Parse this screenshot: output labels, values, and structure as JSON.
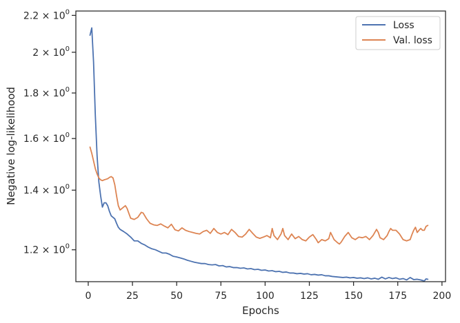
{
  "chart_data": {
    "type": "line",
    "xlabel": "Epochs",
    "ylabel": "Negative log-likelihood",
    "yscale": "log",
    "xlim": [
      -7,
      202
    ],
    "ylim": [
      1.105,
      2.225
    ],
    "grid": false,
    "legend_position": "top-right",
    "x_ticks": [
      0,
      25,
      50,
      75,
      100,
      125,
      150,
      175,
      200
    ],
    "x_tick_labels": [
      "0",
      "25",
      "50",
      "75",
      "100",
      "125",
      "150",
      "175",
      "200"
    ],
    "y_ticks": [
      1.2,
      1.4,
      1.6,
      1.8,
      2.0,
      2.2
    ],
    "y_tick_labels": [
      {
        "mantissa": "1.2",
        "exponent": "0"
      },
      {
        "mantissa": "1.4",
        "exponent": "0"
      },
      {
        "mantissa": "1.6",
        "exponent": "0"
      },
      {
        "mantissa": "1.8",
        "exponent": "0"
      },
      {
        "mantissa": "2",
        "exponent": "0"
      },
      {
        "mantissa": "2.2",
        "exponent": "0"
      }
    ],
    "times_sign": "×",
    "tick_base": "10",
    "series": [
      {
        "name": "Loss",
        "color": "#4c72b0",
        "points": [
          [
            1,
            2.09
          ],
          [
            2,
            2.13
          ],
          [
            3,
            1.95
          ],
          [
            4,
            1.7
          ],
          [
            5,
            1.53
          ],
          [
            6,
            1.43
          ],
          [
            7,
            1.38
          ],
          [
            8,
            1.34
          ],
          [
            9,
            1.355
          ],
          [
            10,
            1.355
          ],
          [
            11,
            1.345
          ],
          [
            12,
            1.325
          ],
          [
            13,
            1.31
          ],
          [
            14,
            1.305
          ],
          [
            15,
            1.3
          ],
          [
            16,
            1.285
          ],
          [
            17,
            1.272
          ],
          [
            18,
            1.265
          ],
          [
            20,
            1.258
          ],
          [
            22,
            1.25
          ],
          [
            24,
            1.24
          ],
          [
            26,
            1.228
          ],
          [
            28,
            1.228
          ],
          [
            30,
            1.22
          ],
          [
            32,
            1.215
          ],
          [
            34,
            1.208
          ],
          [
            36,
            1.203
          ],
          [
            38,
            1.2
          ],
          [
            40,
            1.195
          ],
          [
            42,
            1.19
          ],
          [
            44,
            1.19
          ],
          [
            46,
            1.186
          ],
          [
            48,
            1.18
          ],
          [
            50,
            1.178
          ],
          [
            52,
            1.175
          ],
          [
            54,
            1.172
          ],
          [
            56,
            1.168
          ],
          [
            58,
            1.165
          ],
          [
            60,
            1.162
          ],
          [
            62,
            1.16
          ],
          [
            64,
            1.158
          ],
          [
            66,
            1.158
          ],
          [
            68,
            1.155
          ],
          [
            70,
            1.154
          ],
          [
            72,
            1.155
          ],
          [
            74,
            1.151
          ],
          [
            76,
            1.152
          ],
          [
            78,
            1.148
          ],
          [
            80,
            1.149
          ],
          [
            82,
            1.146
          ],
          [
            84,
            1.146
          ],
          [
            86,
            1.144
          ],
          [
            88,
            1.145
          ],
          [
            90,
            1.142
          ],
          [
            92,
            1.143
          ],
          [
            94,
            1.14
          ],
          [
            96,
            1.141
          ],
          [
            98,
            1.138
          ],
          [
            100,
            1.139
          ],
          [
            102,
            1.136
          ],
          [
            104,
            1.137
          ],
          [
            106,
            1.134
          ],
          [
            108,
            1.135
          ],
          [
            110,
            1.132
          ],
          [
            112,
            1.133
          ],
          [
            114,
            1.13
          ],
          [
            116,
            1.13
          ],
          [
            118,
            1.128
          ],
          [
            120,
            1.129
          ],
          [
            122,
            1.127
          ],
          [
            124,
            1.128
          ],
          [
            126,
            1.125
          ],
          [
            128,
            1.126
          ],
          [
            130,
            1.124
          ],
          [
            132,
            1.125
          ],
          [
            134,
            1.122
          ],
          [
            136,
            1.122
          ],
          [
            138,
            1.12
          ],
          [
            140,
            1.119
          ],
          [
            142,
            1.118
          ],
          [
            144,
            1.117
          ],
          [
            146,
            1.118
          ],
          [
            148,
            1.116
          ],
          [
            150,
            1.117
          ],
          [
            152,
            1.115
          ],
          [
            154,
            1.116
          ],
          [
            156,
            1.114
          ],
          [
            158,
            1.116
          ],
          [
            160,
            1.113
          ],
          [
            162,
            1.115
          ],
          [
            164,
            1.112
          ],
          [
            166,
            1.118
          ],
          [
            168,
            1.113
          ],
          [
            170,
            1.117
          ],
          [
            172,
            1.114
          ],
          [
            174,
            1.116
          ],
          [
            176,
            1.112
          ],
          [
            178,
            1.114
          ],
          [
            180,
            1.11
          ],
          [
            182,
            1.117
          ],
          [
            184,
            1.111
          ],
          [
            186,
            1.112
          ],
          [
            188,
            1.11
          ],
          [
            190,
            1.107
          ],
          [
            191,
            1.113
          ],
          [
            192,
            1.112
          ]
        ]
      },
      {
        "name": "Val. loss",
        "color": "#dd8452",
        "points": [
          [
            1,
            1.565
          ],
          [
            2,
            1.54
          ],
          [
            3,
            1.51
          ],
          [
            4,
            1.48
          ],
          [
            5,
            1.46
          ],
          [
            6,
            1.445
          ],
          [
            7,
            1.438
          ],
          [
            8,
            1.435
          ],
          [
            9,
            1.438
          ],
          [
            10,
            1.44
          ],
          [
            11,
            1.442
          ],
          [
            12,
            1.447
          ],
          [
            13,
            1.45
          ],
          [
            14,
            1.445
          ],
          [
            15,
            1.42
          ],
          [
            16,
            1.38
          ],
          [
            17,
            1.345
          ],
          [
            18,
            1.33
          ],
          [
            19,
            1.335
          ],
          [
            20,
            1.34
          ],
          [
            21,
            1.345
          ],
          [
            22,
            1.335
          ],
          [
            23,
            1.318
          ],
          [
            24,
            1.302
          ],
          [
            26,
            1.298
          ],
          [
            28,
            1.305
          ],
          [
            30,
            1.322
          ],
          [
            31,
            1.32
          ],
          [
            33,
            1.3
          ],
          [
            35,
            1.285
          ],
          [
            37,
            1.28
          ],
          [
            39,
            1.278
          ],
          [
            41,
            1.283
          ],
          [
            43,
            1.276
          ],
          [
            45,
            1.27
          ],
          [
            47,
            1.282
          ],
          [
            49,
            1.264
          ],
          [
            51,
            1.26
          ],
          [
            53,
            1.27
          ],
          [
            55,
            1.262
          ],
          [
            57,
            1.258
          ],
          [
            59,
            1.255
          ],
          [
            61,
            1.252
          ],
          [
            63,
            1.25
          ],
          [
            65,
            1.258
          ],
          [
            67,
            1.262
          ],
          [
            69,
            1.252
          ],
          [
            71,
            1.268
          ],
          [
            73,
            1.255
          ],
          [
            75,
            1.25
          ],
          [
            77,
            1.255
          ],
          [
            79,
            1.248
          ],
          [
            81,
            1.265
          ],
          [
            83,
            1.255
          ],
          [
            85,
            1.242
          ],
          [
            87,
            1.24
          ],
          [
            89,
            1.25
          ],
          [
            91,
            1.265
          ],
          [
            93,
            1.252
          ],
          [
            95,
            1.24
          ],
          [
            97,
            1.236
          ],
          [
            99,
            1.24
          ],
          [
            101,
            1.245
          ],
          [
            103,
            1.238
          ],
          [
            104,
            1.268
          ],
          [
            105,
            1.245
          ],
          [
            107,
            1.232
          ],
          [
            109,
            1.25
          ],
          [
            110,
            1.268
          ],
          [
            111,
            1.245
          ],
          [
            113,
            1.232
          ],
          [
            115,
            1.25
          ],
          [
            117,
            1.235
          ],
          [
            119,
            1.242
          ],
          [
            121,
            1.232
          ],
          [
            123,
            1.228
          ],
          [
            125,
            1.24
          ],
          [
            127,
            1.248
          ],
          [
            129,
            1.232
          ],
          [
            130,
            1.222
          ],
          [
            132,
            1.232
          ],
          [
            134,
            1.228
          ],
          [
            136,
            1.235
          ],
          [
            137,
            1.255
          ],
          [
            139,
            1.232
          ],
          [
            141,
            1.222
          ],
          [
            142,
            1.218
          ],
          [
            143,
            1.224
          ],
          [
            145,
            1.242
          ],
          [
            147,
            1.255
          ],
          [
            149,
            1.238
          ],
          [
            151,
            1.232
          ],
          [
            153,
            1.24
          ],
          [
            155,
            1.238
          ],
          [
            157,
            1.242
          ],
          [
            159,
            1.232
          ],
          [
            161,
            1.245
          ],
          [
            163,
            1.265
          ],
          [
            164,
            1.255
          ],
          [
            165,
            1.238
          ],
          [
            167,
            1.232
          ],
          [
            169,
            1.245
          ],
          [
            170,
            1.258
          ],
          [
            171,
            1.268
          ],
          [
            172,
            1.262
          ],
          [
            174,
            1.262
          ],
          [
            176,
            1.25
          ],
          [
            178,
            1.232
          ],
          [
            180,
            1.228
          ],
          [
            182,
            1.232
          ],
          [
            183,
            1.248
          ],
          [
            184,
            1.262
          ],
          [
            185,
            1.272
          ],
          [
            186,
            1.255
          ],
          [
            187,
            1.262
          ],
          [
            188,
            1.268
          ],
          [
            189,
            1.262
          ],
          [
            190,
            1.262
          ],
          [
            191,
            1.275
          ],
          [
            192,
            1.278
          ]
        ]
      }
    ]
  }
}
